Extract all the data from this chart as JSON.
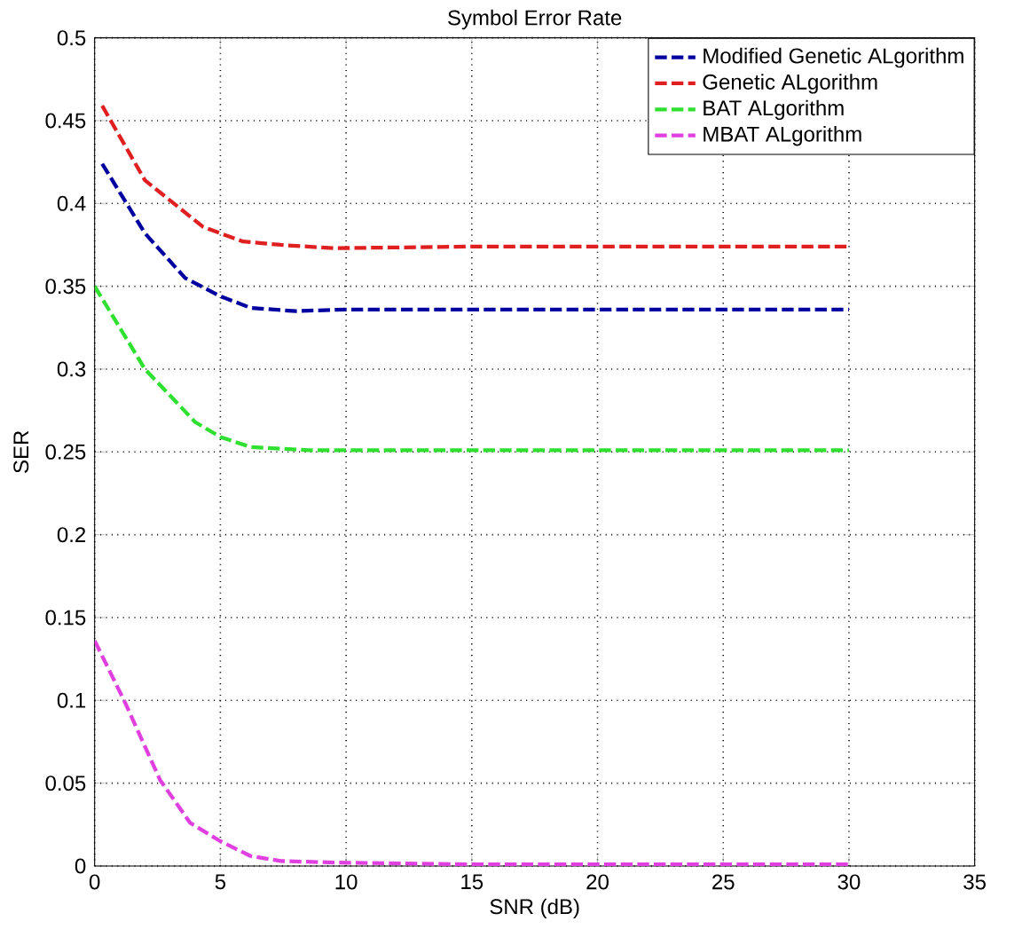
{
  "chart_data": {
    "type": "line",
    "title": "Symbol Error Rate",
    "xlabel": "SNR (dB)",
    "ylabel": "SER",
    "xlim": [
      0,
      35
    ],
    "ylim": [
      0,
      0.5
    ],
    "xticks": [
      0,
      5,
      10,
      15,
      20,
      25,
      30,
      35
    ],
    "yticks": [
      0,
      0.05,
      0.1,
      0.15,
      0.2,
      0.25,
      0.3,
      0.35,
      0.4,
      0.45,
      0.5
    ],
    "grid": true,
    "legend": "top right",
    "line_style": "dashed",
    "series": [
      {
        "name": "Modified Genetic ALgorithm",
        "color": "#0000a0",
        "x": [
          0.3,
          2,
          3.6,
          5,
          6.2,
          8,
          10,
          15,
          20,
          25,
          30
        ],
        "values": [
          0.424,
          0.382,
          0.355,
          0.344,
          0.337,
          0.335,
          0.336,
          0.336,
          0.336,
          0.336,
          0.336
        ]
      },
      {
        "name": "Genetic ALgorithm",
        "color": "#e02020",
        "x": [
          0.3,
          2,
          4.3,
          5,
          5.9,
          7.4,
          9.5,
          15,
          20,
          25,
          30
        ],
        "values": [
          0.459,
          0.414,
          0.386,
          0.382,
          0.377,
          0.375,
          0.373,
          0.374,
          0.374,
          0.374,
          0.374
        ]
      },
      {
        "name": "BAT ALgorithm",
        "color": "#30e030",
        "x": [
          0,
          2,
          4,
          5,
          6.2,
          8.5,
          10,
          15,
          20,
          25,
          30
        ],
        "values": [
          0.35,
          0.3,
          0.268,
          0.259,
          0.253,
          0.251,
          0.251,
          0.251,
          0.251,
          0.251,
          0.251
        ]
      },
      {
        "name": "MBAT ALgorithm",
        "color": "#e040e0",
        "x": [
          0,
          1.2,
          2.6,
          3.8,
          5,
          6.2,
          7.4,
          9.7,
          15,
          20,
          25,
          30
        ],
        "values": [
          0.136,
          0.099,
          0.052,
          0.026,
          0.015,
          0.006,
          0.003,
          0.002,
          0.001,
          0.001,
          0.001,
          0.001
        ]
      }
    ]
  }
}
